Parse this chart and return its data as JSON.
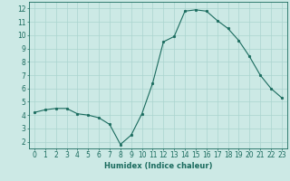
{
  "x": [
    0,
    1,
    2,
    3,
    4,
    5,
    6,
    7,
    8,
    9,
    10,
    11,
    12,
    13,
    14,
    15,
    16,
    17,
    18,
    19,
    20,
    21,
    22,
    23
  ],
  "y": [
    4.2,
    4.4,
    4.5,
    4.5,
    4.1,
    4.0,
    3.8,
    3.3,
    1.8,
    2.5,
    4.1,
    6.4,
    9.5,
    9.9,
    11.8,
    11.9,
    11.8,
    11.1,
    10.5,
    9.6,
    8.4,
    7.0,
    6.0,
    5.3
  ],
  "line_color": "#1a6b5e",
  "marker": "o",
  "marker_size": 1.8,
  "bg_color": "#cce9e5",
  "grid_color": "#aad4cf",
  "xlabel": "Humidex (Indice chaleur)",
  "ylim": [
    1.5,
    12.5
  ],
  "xlim": [
    -0.5,
    23.5
  ],
  "yticks": [
    2,
    3,
    4,
    5,
    6,
    7,
    8,
    9,
    10,
    11,
    12
  ],
  "xticks": [
    0,
    1,
    2,
    3,
    4,
    5,
    6,
    7,
    8,
    9,
    10,
    11,
    12,
    13,
    14,
    15,
    16,
    17,
    18,
    19,
    20,
    21,
    22,
    23
  ],
  "tick_color": "#1a6b5e",
  "label_fontsize": 6.0,
  "tick_fontsize": 5.5
}
